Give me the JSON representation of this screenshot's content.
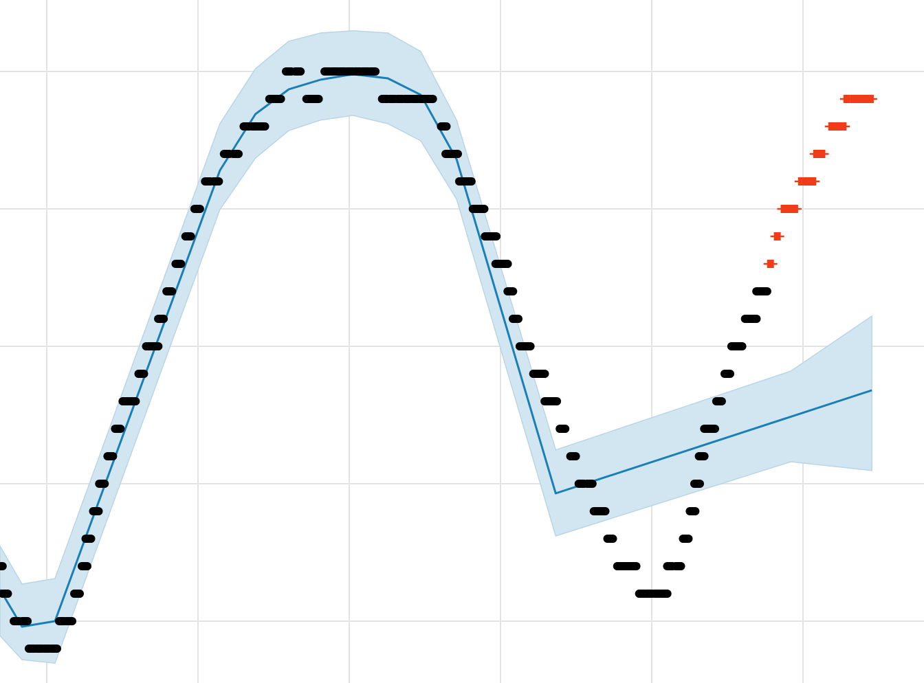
{
  "chart_data": {
    "type": "forecast",
    "x": [
      -6.18,
      -3.27,
      1.09,
      22.9,
      27.6,
      32.0,
      36.2,
      40.5,
      45.1,
      49.45,
      54.2,
      67.3,
      98.4,
      109.1
    ],
    "yhat": [
      1.15,
      -0.2,
      0,
      16.4,
      18.45,
      19.35,
      19.7,
      19.9,
      19.75,
      19.15,
      16.8,
      4.65,
      7.44,
      8.4
    ],
    "yhat_upper": [
      2.73,
      1.35,
      1.55,
      18.1,
      20.1,
      21.1,
      21.4,
      21.48,
      21.4,
      20.73,
      18.23,
      6.23,
      9.1,
      11.1
    ],
    "yhat_lower": [
      -0.53,
      -1.4,
      -1.53,
      14.98,
      16.85,
      17.85,
      18.23,
      18.4,
      18.1,
      17.48,
      15.35,
      3.1,
      5.8,
      5.48
    ],
    "line_color": "#1a7fb5",
    "band_color": "#d2e6f1",
    "observed": {
      "color": "#000000",
      "x": [
        -6.2,
        -5.5,
        -4,
        -2.9,
        -2,
        -1,
        0,
        1,
        2,
        3,
        4,
        5,
        5.5,
        6.5,
        7.3,
        8.4,
        9.4,
        10.4,
        11.4,
        12.5,
        13.5,
        14.4,
        15.1,
        16.2,
        17.4,
        18.7,
        19.9,
        21.3,
        22.4,
        23.8,
        25,
        26.4,
        27.5,
        28.5,
        29.8,
        30.6,
        32,
        33.2,
        34.7,
        35.6,
        37.1,
        38.1,
        39.1,
        40.1,
        41.1,
        42.1,
        43.1,
        44.7,
        45.7,
        46.7,
        47.7,
        48.7,
        49.7,
        50.7,
        52.5,
        53.1,
        54,
        54.9,
        55.8,
        56.7,
        57.5,
        58.3,
        59.1,
        59.7,
        60.6,
        61.3,
        62,
        62.9,
        63.6,
        64.7,
        65.5,
        66.2,
        67.1,
        68.2,
        69.6,
        70.7,
        71.8,
        72.7,
        73.5,
        74.5,
        75.8,
        76.7,
        77.6,
        78.7,
        79.7,
        80.7,
        81.7,
        82.4,
        83.5,
        84.5,
        85.4,
        86,
        86.6,
        87.3,
        88,
        88.9,
        90,
        90.9,
        91.6,
        92.7,
        93.5,
        94.2,
        94.9
      ],
      "y": [
        2,
        1,
        0,
        0,
        -1,
        -1,
        -1,
        -1,
        0,
        0,
        1,
        2,
        3,
        4,
        5,
        6,
        7,
        8,
        8,
        9,
        10,
        10,
        11,
        12,
        13,
        14,
        15,
        16,
        16,
        17,
        17,
        18,
        18,
        18,
        19,
        19,
        20,
        20,
        19,
        19,
        20,
        20,
        20,
        20,
        20,
        20,
        20,
        19,
        19,
        19,
        19,
        19,
        19,
        19,
        18,
        17,
        17,
        16,
        16,
        15,
        15,
        14,
        14,
        13,
        13,
        12,
        11,
        10,
        10,
        9,
        9,
        8,
        8,
        7,
        6,
        5,
        5,
        4,
        4,
        3,
        2,
        2,
        2,
        1,
        1,
        1,
        1,
        2,
        2,
        3,
        4,
        5,
        6,
        7,
        7,
        8,
        9,
        10,
        10,
        11,
        11,
        12,
        12
      ]
    },
    "test": {
      "color": "#f03c18",
      "x": [
        95.7,
        96.6,
        97.5,
        98.2,
        98.9,
        99.8,
        100.5,
        101.3,
        101.8,
        102.5,
        103.8,
        104.5,
        105.3,
        105.8,
        106.7,
        107.5,
        108.2,
        108.9
      ],
      "y": [
        13,
        14,
        15,
        15,
        15,
        16,
        16,
        16,
        17,
        17,
        18,
        18,
        18,
        19,
        19,
        19,
        19,
        19
      ]
    },
    "xlim": [
      -6.18,
      116
    ],
    "ylim": [
      -2.25,
      22.6
    ],
    "xticks": [
      0,
      20,
      40,
      60,
      80,
      100
    ],
    "yticks": [
      0,
      5,
      10,
      15,
      20
    ],
    "grid": true
  }
}
